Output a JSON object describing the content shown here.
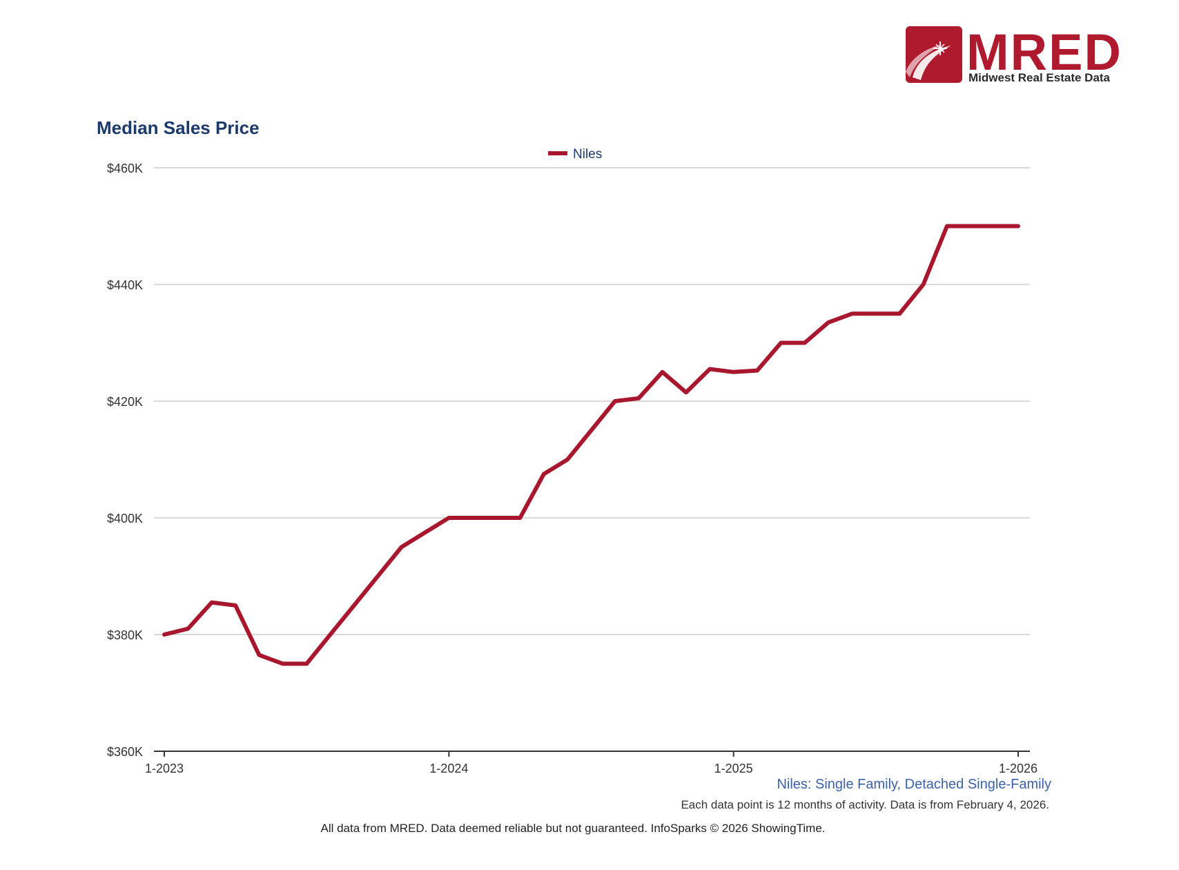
{
  "brand": {
    "name": "MRED",
    "tagline": "Midwest Real Estate Data",
    "color": "#b01a2e"
  },
  "chart_data": {
    "type": "line",
    "title": "Median Sales Price",
    "xlabel": "",
    "ylabel": "",
    "ylim": [
      360000,
      460000
    ],
    "yticks": [
      {
        "value": 360000,
        "label": "$360K"
      },
      {
        "value": 380000,
        "label": "$380K"
      },
      {
        "value": 400000,
        "label": "$400K"
      },
      {
        "value": 420000,
        "label": "$420K"
      },
      {
        "value": 440000,
        "label": "$440K"
      },
      {
        "value": 460000,
        "label": "$460K"
      }
    ],
    "xticks": [
      {
        "index": 0,
        "label": "1-2023"
      },
      {
        "index": 12,
        "label": "1-2024"
      },
      {
        "index": 24,
        "label": "1-2025"
      },
      {
        "index": 36,
        "label": "1-2026"
      }
    ],
    "legend": {
      "position": "top-center"
    },
    "grid": true,
    "x": [
      "1-2023",
      "2-2023",
      "3-2023",
      "4-2023",
      "5-2023",
      "6-2023",
      "7-2023",
      "8-2023",
      "9-2023",
      "10-2023",
      "11-2023",
      "12-2023",
      "1-2024",
      "2-2024",
      "3-2024",
      "4-2024",
      "5-2024",
      "6-2024",
      "7-2024",
      "8-2024",
      "9-2024",
      "10-2024",
      "11-2024",
      "12-2024",
      "1-2025",
      "2-2025",
      "3-2025",
      "4-2025",
      "5-2025",
      "6-2025",
      "7-2025",
      "8-2025",
      "9-2025",
      "10-2025",
      "11-2025",
      "12-2025",
      "1-2026"
    ],
    "series": [
      {
        "name": "Niles",
        "color": "#a8172d",
        "values": [
          380000,
          381000,
          385500,
          385000,
          376500,
          375000,
          375000,
          380000,
          385000,
          390000,
          395000,
          397500,
          400000,
          400000,
          400000,
          400000,
          407500,
          410000,
          415000,
          420000,
          420500,
          425000,
          421500,
          425500,
          425000,
          425250,
          430000,
          430000,
          433500,
          435000,
          435000,
          435000,
          440000,
          450000,
          450000,
          450000,
          450000
        ]
      }
    ]
  },
  "footer": {
    "subtitle": "Niles: Single Family, Detached Single-Family",
    "note": "Each data point is 12 months of activity. Data is from February 4, 2026.",
    "disclaimer": "All data from MRED. Data deemed reliable but not guaranteed. InfoSparks © 2026 ShowingTime."
  }
}
